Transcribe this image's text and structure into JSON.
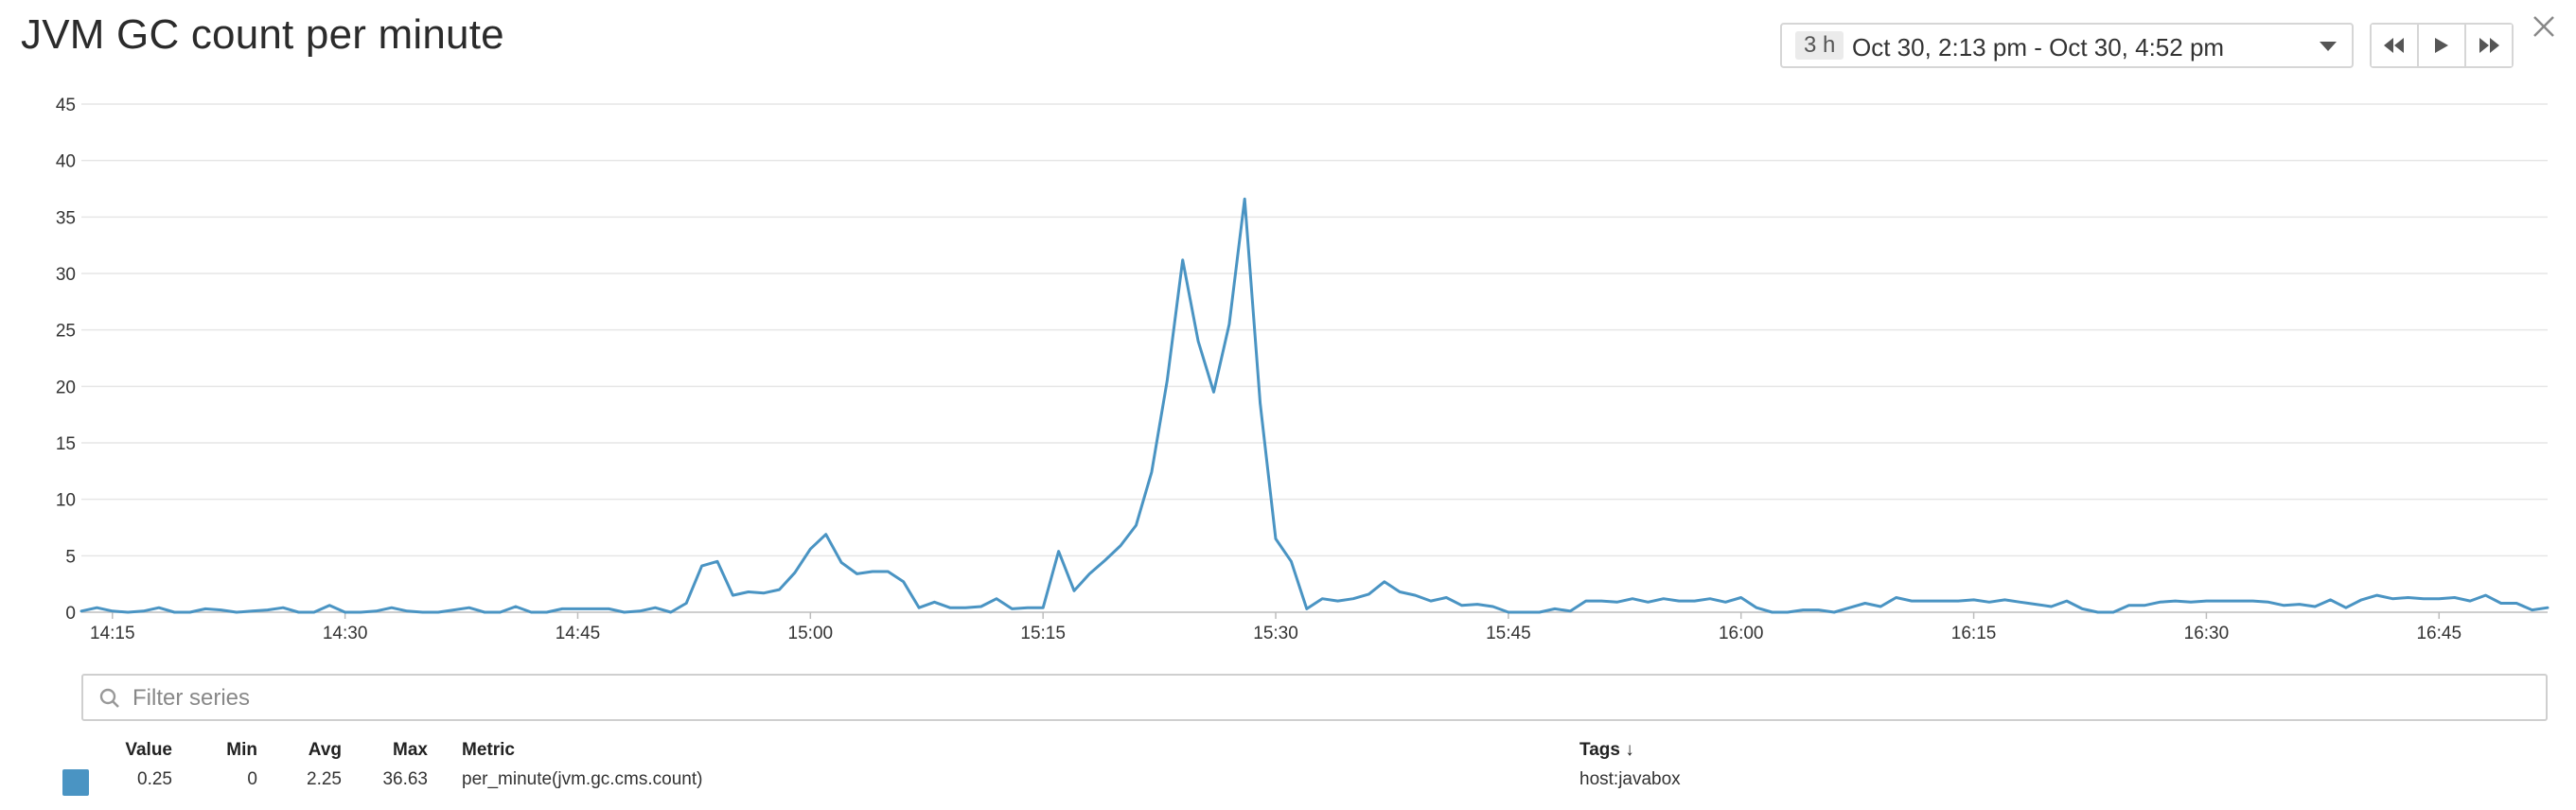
{
  "title": "JVM GC count per minute",
  "time_picker": {
    "duration": "3 h",
    "range": "Oct 30, 2:13 pm - Oct 30, 4:52 pm"
  },
  "filter": {
    "placeholder": "Filter series"
  },
  "legend": {
    "headers": {
      "value": "Value",
      "min": "Min",
      "avg": "Avg",
      "max": "Max",
      "metric": "Metric",
      "tags": "Tags ↓"
    },
    "rows": [
      {
        "color": "#4a94c3",
        "value": "0.25",
        "min": "0",
        "avg": "2.25",
        "max": "36.63",
        "metric": "per_minute(jvm.gc.cms.count)",
        "tags": "host:javabox"
      }
    ]
  },
  "icons": {
    "close": "close-icon",
    "rewind": "rewind-icon",
    "play": "play-icon",
    "fast_forward": "fast-forward-icon",
    "search": "search-icon"
  },
  "chart_data": {
    "type": "line",
    "y_ticks": [
      "0",
      "5",
      "10",
      "15",
      "20",
      "25",
      "30",
      "35",
      "40",
      "45"
    ],
    "ylim": [
      0,
      45
    ],
    "x_ticks": [
      "14:15",
      "14:30",
      "14:45",
      "15:00",
      "15:15",
      "15:30",
      "15:45",
      "16:00",
      "16:15",
      "16:30",
      "16:45"
    ],
    "x_tick_minutes": [
      855,
      870,
      885,
      900,
      915,
      930,
      945,
      960,
      975,
      990,
      1005
    ],
    "xlim": [
      853,
      1012
    ],
    "grid": true,
    "series": [
      {
        "color": "#4a94c3",
        "x": [
          853,
          854,
          855,
          856,
          857,
          858,
          859,
          860,
          861,
          862,
          863,
          864,
          865,
          866,
          867,
          868,
          869,
          870,
          871,
          872,
          873,
          874,
          875,
          876,
          877,
          878,
          879,
          880,
          881,
          882,
          883,
          884,
          885,
          886,
          887,
          888,
          889,
          890,
          891,
          892,
          893,
          894,
          895,
          896,
          897,
          898,
          899,
          900,
          901,
          902,
          903,
          904,
          905,
          906,
          907,
          908,
          909,
          910,
          911,
          912,
          913,
          914,
          915,
          916,
          917,
          918,
          919,
          920,
          921,
          922,
          923,
          924,
          925,
          926,
          927,
          928,
          929,
          930,
          931,
          932,
          933,
          934,
          935,
          936,
          937,
          938,
          939,
          940,
          941,
          942,
          943,
          944,
          945,
          946,
          947,
          948,
          949,
          950,
          951,
          952,
          953,
          954,
          955,
          956,
          957,
          958,
          959,
          960,
          961,
          962,
          963,
          964,
          965,
          966,
          967,
          968,
          969,
          970,
          971,
          972,
          973,
          974,
          975,
          976,
          977,
          978,
          979,
          980,
          981,
          982,
          983,
          984,
          985,
          986,
          987,
          988,
          989,
          990,
          991,
          992,
          993,
          994,
          995,
          996,
          997,
          998,
          999,
          1000,
          1001,
          1002,
          1003,
          1004,
          1005,
          1006,
          1007,
          1008,
          1009,
          1010,
          1011,
          1012
        ],
        "values": [
          0.1,
          0.4,
          0.1,
          0,
          0.1,
          0.4,
          0,
          0,
          0.3,
          0.2,
          0,
          0.1,
          0.2,
          0.4,
          0,
          0,
          0.6,
          0,
          0,
          0.1,
          0.4,
          0.1,
          0,
          0,
          0.2,
          0.4,
          0,
          0,
          0.5,
          0,
          0,
          0.3,
          0.3,
          0.3,
          0.3,
          0,
          0.1,
          0.4,
          0,
          0.8,
          4.1,
          4.5,
          1.5,
          1.8,
          1.7,
          2.0,
          3.5,
          5.6,
          6.9,
          4.4,
          3.4,
          3.6,
          3.6,
          2.7,
          0.4,
          0.9,
          0.4,
          0.4,
          0.5,
          1.2,
          0.3,
          0.4,
          0.4,
          5.4,
          1.9,
          3.4,
          4.6,
          5.9,
          7.7,
          12.4,
          20.5,
          31.2,
          24.0,
          19.5,
          25.5,
          36.6,
          18.5,
          6.5,
          4.5,
          0.3,
          1.2,
          1.0,
          1.2,
          1.6,
          2.7,
          1.8,
          1.5,
          1.0,
          1.3,
          0.6,
          0.7,
          0.5,
          0,
          0,
          0,
          0.3,
          0.1,
          1.0,
          1.0,
          0.9,
          1.2,
          0.9,
          1.2,
          1.0,
          1.0,
          1.2,
          0.9,
          1.3,
          0.4,
          0,
          0,
          0.2,
          0.2,
          0,
          0.4,
          0.8,
          0.5,
          1.3,
          1.0,
          1.0,
          1.0,
          1.0,
          1.1,
          0.9,
          1.1,
          0.9,
          0.7,
          0.5,
          1.0,
          0.3,
          0,
          0,
          0.6,
          0.6,
          0.9,
          1.0,
          0.9,
          1.0,
          1.0,
          1.0,
          1.0,
          0.9,
          0.6,
          0.7,
          0.5,
          1.1,
          0.4,
          1.1,
          1.5,
          1.2,
          1.3,
          1.2,
          1.2,
          1.3,
          1.0,
          1.5,
          0.8,
          0.8,
          0.2,
          0.4
        ]
      }
    ]
  }
}
